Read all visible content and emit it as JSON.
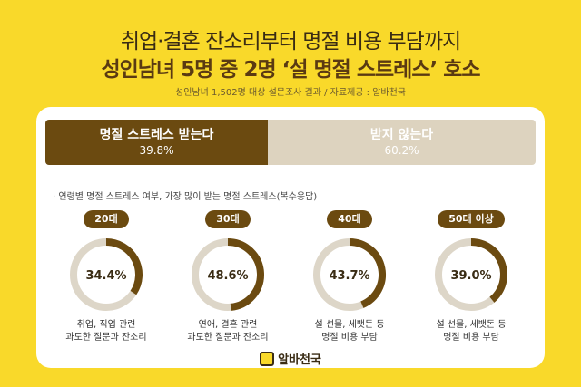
{
  "header": {
    "title_line1": "취업·결혼 잔소리부터 명절 비용 부담까지",
    "title_line2": "성인남녀 5명 중 2명 ‘설 명절 스트레스’ 호소",
    "source": "성인남녀 1,502명 대상 설문조사 결과 / 자료제공 : 알바천국"
  },
  "note": "· 연령별 명절 스트레스 여부, 가장 많이 받는 명절 스트레스(복수응답)",
  "footer": {
    "brand": "알바천국"
  },
  "chart_data": [
    {
      "type": "bar",
      "categories": [
        "명절 스트레스 받는다",
        "받지 않는다"
      ],
      "values": [
        39.8,
        60.2
      ],
      "value_labels": [
        "39.8%",
        "60.2%"
      ],
      "colors": [
        "#6b4a10",
        "#ddd3bf"
      ]
    },
    {
      "type": "pie",
      "categories": [
        "20대",
        "30대",
        "40대",
        "50대 이상"
      ],
      "values": [
        34.4,
        48.6,
        43.7,
        39.0
      ],
      "value_labels": [
        "34.4%",
        "48.6%",
        "43.7%",
        "39.0%"
      ],
      "descriptions": [
        [
          "취업, 직업 관련",
          "과도한 질문과 잔소리"
        ],
        [
          "연애, 결혼 관련",
          "과도한 질문과 잔소리"
        ],
        [
          "설 선물, 세뱃돈 등",
          "명절 비용 부담"
        ],
        [
          "설 선물, 세뱃돈 등",
          "명절 비용 부담"
        ]
      ],
      "colors": {
        "fill": "#6b4a10",
        "track": "#ddd6c8"
      }
    }
  ]
}
